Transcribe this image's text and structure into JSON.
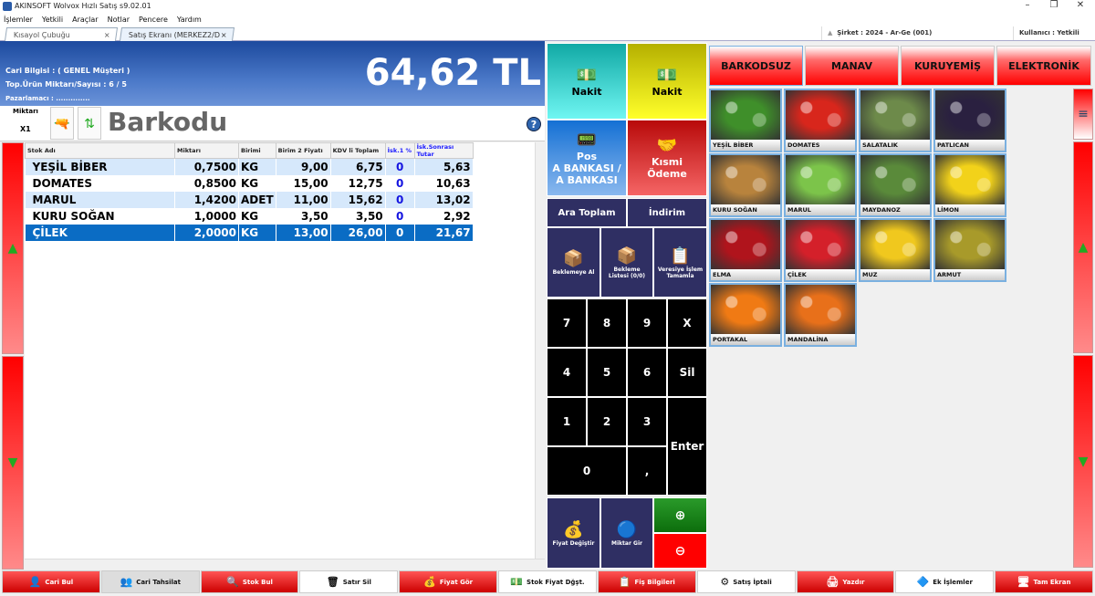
{
  "app": {
    "title": "AKINSOFT Wolvox Hızlı Satış s9.02.01"
  },
  "menu": [
    "İşlemler",
    "Yetkili",
    "Araçlar",
    "Notlar",
    "Pencere",
    "Yardım"
  ],
  "tabs": [
    {
      "label": "Kısayol Çubuğu"
    },
    {
      "label": "Satış Ekranı (MERKEZ2/DEPO)"
    }
  ],
  "status": {
    "company": "Şirket : 2024 - Ar-Ge (001)",
    "user": "Kullanıcı : Yetkili"
  },
  "header": {
    "cari": "Cari Bilgisi : ( GENEL Müşteri )",
    "top_urun": "Top.Ürün Miktarı/Sayısı : 6 / 5",
    "pazarlamaci": "Pazarlamacı : ..............",
    "total": "64,62 TL"
  },
  "barcode": {
    "miktar_label": "Miktarı",
    "miktar_value": "X1",
    "field_label": "Barkodu"
  },
  "table": {
    "columns": [
      "Stok Adı",
      "Miktarı",
      "Birimi",
      "Birim 2 Fiyatı",
      "KDV li Toplam",
      "İsk.1 %",
      "İsk.Sonrası Tutar"
    ],
    "rows": [
      [
        "YEŞİL BİBER",
        "0,7500",
        "KG",
        "9,00",
        "6,75",
        "0",
        "5,63"
      ],
      [
        "DOMATES",
        "0,8500",
        "KG",
        "15,00",
        "12,75",
        "0",
        "10,63"
      ],
      [
        "MARUL",
        "1,4200",
        "ADET",
        "11,00",
        "15,62",
        "0",
        "13,02"
      ],
      [
        "KURU SOĞAN",
        "1,0000",
        "KG",
        "3,50",
        "3,50",
        "0",
        "2,92"
      ],
      [
        "ÇİLEK",
        "2,0000",
        "KG",
        "13,00",
        "26,00",
        "0",
        "21,67"
      ]
    ],
    "selected_row": 4
  },
  "payment": {
    "nakit1": "Nakit",
    "nakit2": "Nakit",
    "pos1": "Pos",
    "pos2": "A BANKASI /",
    "pos3": "A BANKASI",
    "kismi1": "Kısmi",
    "kismi2": "Ödeme",
    "ara_toplam": "Ara Toplam",
    "indirim": "İndirim",
    "beklemeye_al": "Beklemeye Al",
    "bekleme_listesi": "Bekleme Listesi (0/0)",
    "veresiye": "Veresiye İşlem Tamamla",
    "fiyat_degistir": "Fiyat Değiştir",
    "miktar_gir": "Miktar Gir"
  },
  "numpad": [
    "7",
    "8",
    "9",
    "X",
    "4",
    "5",
    "6",
    "Sil",
    "1",
    "2",
    "3",
    "Enter",
    "0",
    ","
  ],
  "categories": [
    "BARKODSUZ",
    "MANAV",
    "KURUYEMİŞ",
    "ELEKTRONİK"
  ],
  "products": [
    {
      "name": "YEŞİL BİBER",
      "color": "#3f8f2a"
    },
    {
      "name": "DOMATES",
      "color": "#d8261c"
    },
    {
      "name": "SALATALIK",
      "color": "#6d8a4a"
    },
    {
      "name": "PATLICAN",
      "color": "#2a2040"
    },
    {
      "name": "KURU SOĞAN",
      "color": "#b8833d"
    },
    {
      "name": "MARUL",
      "color": "#7cc44a"
    },
    {
      "name": "MAYDANOZ",
      "color": "#5a8a3a"
    },
    {
      "name": "LİMON",
      "color": "#f2d21a"
    },
    {
      "name": "ELMA",
      "color": "#b0141c"
    },
    {
      "name": "ÇİLEK",
      "color": "#d4202a"
    },
    {
      "name": "MUZ",
      "color": "#f0c81e"
    },
    {
      "name": "ARMUT",
      "color": "#a89a2a"
    },
    {
      "name": "PORTAKAL",
      "color": "#f07a14"
    },
    {
      "name": "MANDALİNA",
      "color": "#e8701a"
    }
  ],
  "bottom": [
    {
      "label": "Cari Bul",
      "style": "r",
      "icon": "👤"
    },
    {
      "label": "Cari Tahsilat",
      "style": "g",
      "icon": "👥"
    },
    {
      "label": "Stok Bul",
      "style": "r",
      "icon": "🔍"
    },
    {
      "label": "Satır Sil",
      "style": "w",
      "icon": "🗑"
    },
    {
      "label": "Fiyat Gör",
      "style": "r",
      "icon": "💰"
    },
    {
      "label": "Stok Fiyat Dğşt.",
      "style": "w",
      "icon": "💵"
    },
    {
      "label": "Fiş Bilgileri",
      "style": "r",
      "icon": "📋"
    },
    {
      "label": "Satış İptali",
      "style": "w",
      "icon": "⚙"
    },
    {
      "label": "Yazdır",
      "style": "r",
      "icon": "🖨"
    },
    {
      "label": "Ek İşlemler",
      "style": "w",
      "icon": "🔷"
    },
    {
      "label": "Tam Ekran",
      "style": "r",
      "icon": "🖥"
    }
  ]
}
